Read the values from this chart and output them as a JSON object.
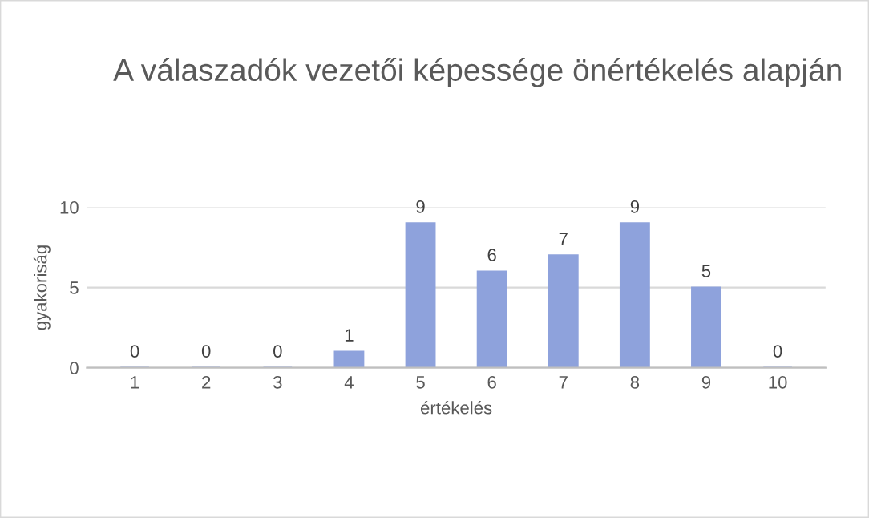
{
  "chart_data": {
    "type": "bar",
    "title": "A válaszadók vezetői képessége önértékelés alapján",
    "xlabel": "értékelés",
    "ylabel": "gyakoriság",
    "categories": [
      "1",
      "2",
      "3",
      "4",
      "5",
      "6",
      "7",
      "8",
      "9",
      "10"
    ],
    "values": [
      0,
      0,
      0,
      1,
      9,
      6,
      7,
      9,
      5,
      0
    ],
    "color": "#8ea2dc",
    "ylim": [
      0,
      10
    ],
    "yticks": [
      0,
      5,
      10
    ],
    "grid": "y",
    "data_labels": true
  }
}
